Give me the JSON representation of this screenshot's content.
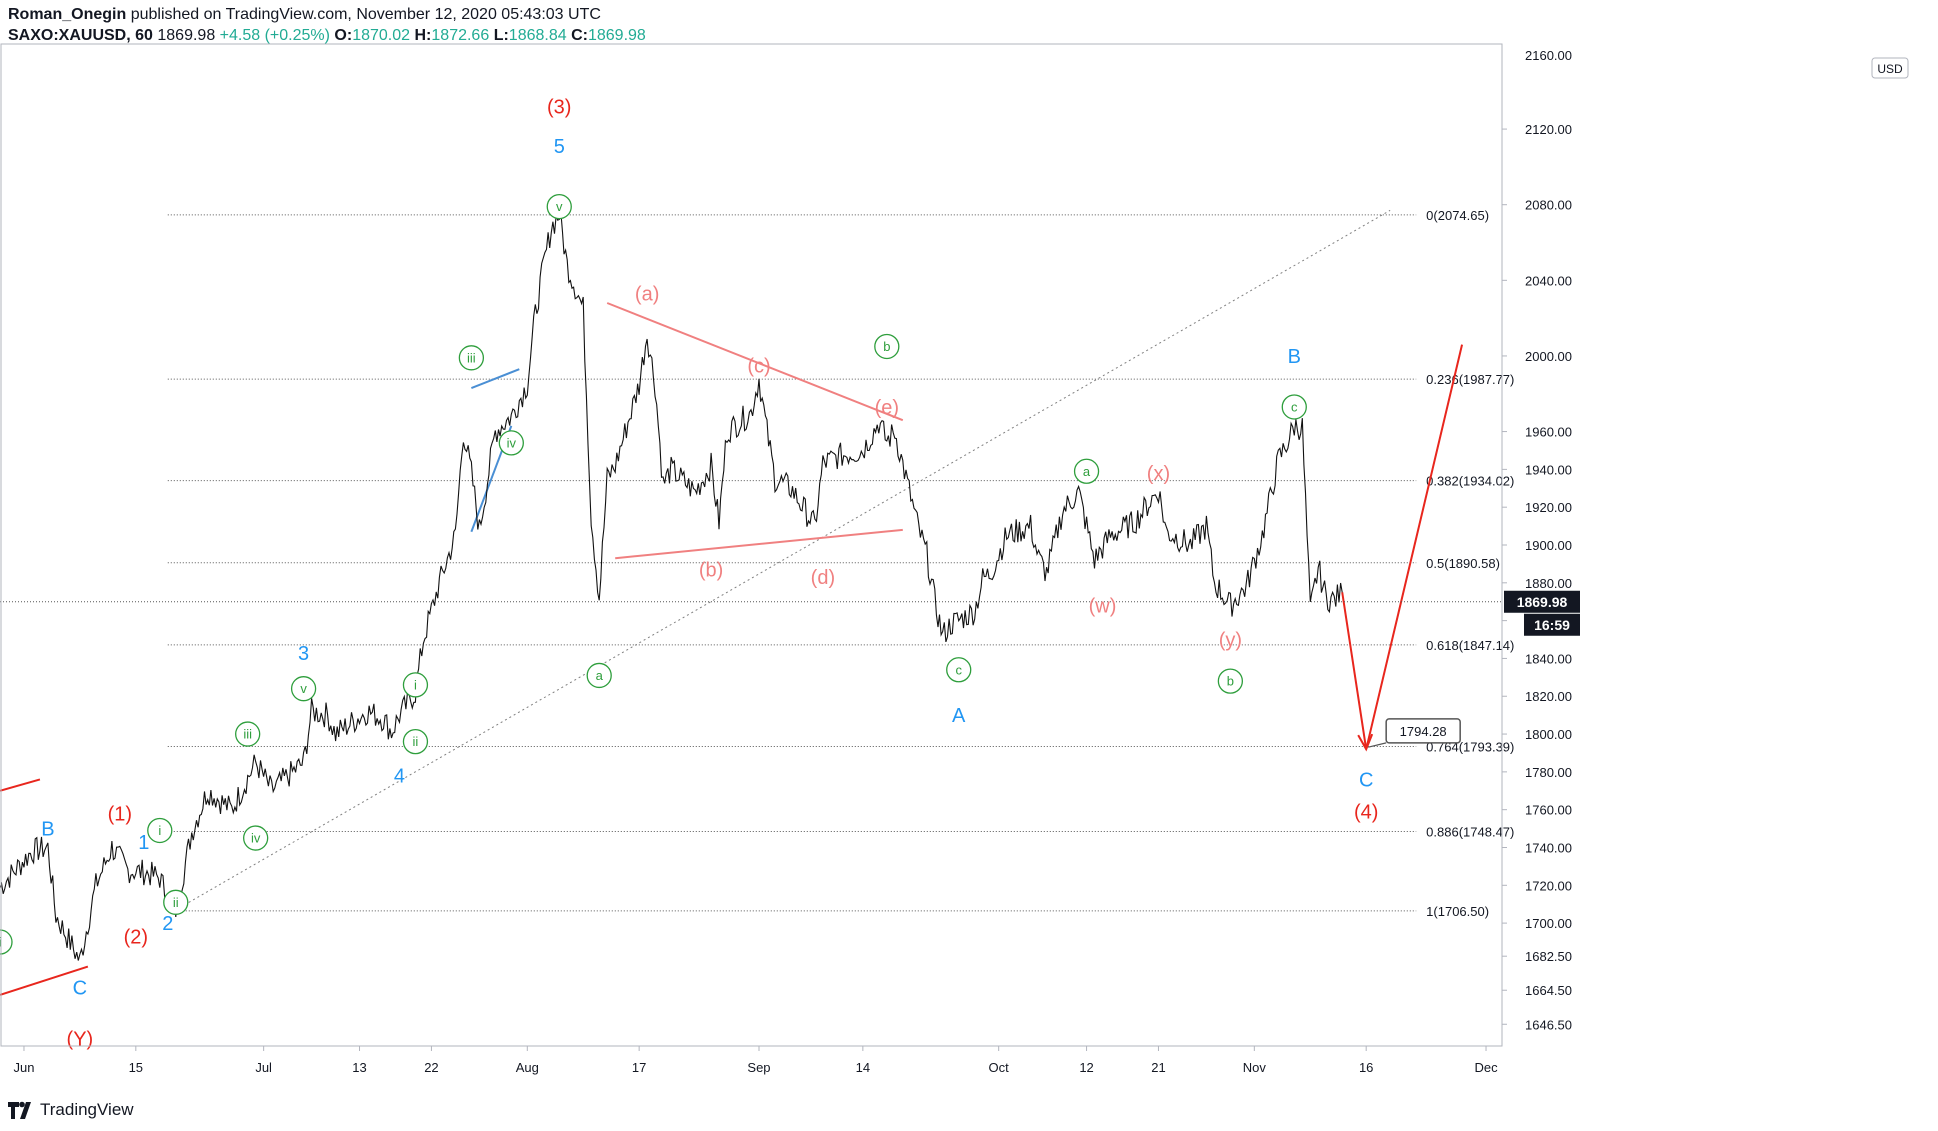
{
  "header": {
    "author": "Roman_Onegin",
    "published": "published on TradingView.com, November 12, 2020 05:43:03 UTC",
    "symbol": "SAXO:XAUUSD, 60",
    "last": "1869.98",
    "change": "+4.58 (+0.25%)",
    "o_label": "O:",
    "o": "1870.02",
    "h_label": "H:",
    "h": "1872.66",
    "l_label": "L:",
    "l": "1868.84",
    "c_label": "C:",
    "c": "1869.98"
  },
  "currency_badge": "USD",
  "footer": {
    "brand": "TradingView"
  },
  "colors": {
    "red": "#e8261d",
    "blue": "#2196f3",
    "green": "#2e9e3c",
    "salmon": "#f08080",
    "dark_blue_line": "#4a8fd4"
  },
  "chart_data": {
    "type": "line",
    "series_name": "",
    "y_axis": {
      "ticks": [
        2120.0,
        2080.0,
        2040.0,
        2000.0,
        1960.0,
        1940.0,
        1920.0,
        1900.0,
        1880.0,
        1860.0,
        1840.0,
        1820.0,
        1800.0,
        1780.0,
        1760.0,
        1740.0,
        1720.0,
        1700.0,
        1682.5,
        1664.5,
        1646.5
      ],
      "tick_labels": [
        "2120.00",
        "2080.00",
        "2040.00",
        "2000.00",
        "1960.00",
        "1940.00",
        "1920.00",
        "1900.00",
        "1880.00",
        "1860.00",
        "1840.00",
        "1820.00",
        "1800.00",
        "1780.00",
        "1760.00",
        "1740.00",
        "1720.00",
        "1700.00",
        "1682.50",
        "1664.50",
        "1646.50"
      ],
      "top_partial_label": "2160.00",
      "ylim": [
        1635,
        2165
      ]
    },
    "x_axis": {
      "ticks": [
        {
          "label": "Jun",
          "date": "2020-06-01"
        },
        {
          "label": "15",
          "date": "2020-06-15"
        },
        {
          "label": "Jul",
          "date": "2020-07-01"
        },
        {
          "label": "13",
          "date": "2020-07-13"
        },
        {
          "label": "22",
          "date": "2020-07-22"
        },
        {
          "label": "Aug",
          "date": "2020-08-03"
        },
        {
          "label": "17",
          "date": "2020-08-17"
        },
        {
          "label": "Sep",
          "date": "2020-09-01"
        },
        {
          "label": "14",
          "date": "2020-09-14"
        },
        {
          "label": "Oct",
          "date": "2020-10-01"
        },
        {
          "label": "12",
          "date": "2020-10-12"
        },
        {
          "label": "21",
          "date": "2020-10-21"
        },
        {
          "label": "Nov",
          "date": "2020-11-02"
        },
        {
          "label": "16",
          "date": "2020-11-16"
        },
        {
          "label": "Dec",
          "date": "2020-12-01"
        }
      ],
      "xlim": [
        "2020-05-29",
        "2020-12-03"
      ]
    },
    "price_path": [
      [
        "2020-05-29",
        1719
      ],
      [
        "2020-06-02",
        1738
      ],
      [
        "2020-06-04",
        1740
      ],
      [
        "2020-06-05",
        1704
      ],
      [
        "2020-06-08",
        1680
      ],
      [
        "2020-06-10",
        1720
      ],
      [
        "2020-06-12",
        1740
      ],
      [
        "2020-06-14",
        1728
      ],
      [
        "2020-06-16",
        1727
      ],
      [
        "2020-06-18",
        1724
      ],
      [
        "2020-06-19",
        1713
      ],
      [
        "2020-06-20",
        1707
      ],
      [
        "2020-06-22",
        1748
      ],
      [
        "2020-06-24",
        1770
      ],
      [
        "2020-06-27",
        1760
      ],
      [
        "2020-06-30",
        1785
      ],
      [
        "2020-07-02",
        1770
      ],
      [
        "2020-07-06",
        1785
      ],
      [
        "2020-07-07",
        1812
      ],
      [
        "2020-07-09",
        1810
      ],
      [
        "2020-07-10",
        1800
      ],
      [
        "2020-07-14",
        1812
      ],
      [
        "2020-07-16",
        1808
      ],
      [
        "2020-07-17",
        1801
      ],
      [
        "2020-07-18",
        1810
      ],
      [
        "2020-07-20",
        1822
      ],
      [
        "2020-07-21",
        1850
      ],
      [
        "2020-07-23",
        1880
      ],
      [
        "2020-07-25",
        1905
      ],
      [
        "2020-07-26",
        1960
      ],
      [
        "2020-07-27",
        1938
      ],
      [
        "2020-07-28",
        1908
      ],
      [
        "2020-07-30",
        1960
      ],
      [
        "2020-08-01",
        1968
      ],
      [
        "2020-08-03",
        1985
      ],
      [
        "2020-08-04",
        2022
      ],
      [
        "2020-08-05",
        2047
      ],
      [
        "2020-08-06",
        2068
      ],
      [
        "2020-08-07",
        2075
      ],
      [
        "2020-08-08",
        2048
      ],
      [
        "2020-08-10",
        2025
      ],
      [
        "2020-08-11",
        1915
      ],
      [
        "2020-08-12",
        1872
      ],
      [
        "2020-08-13",
        1935
      ],
      [
        "2020-08-14",
        1942
      ],
      [
        "2020-08-17",
        1985
      ],
      [
        "2020-08-18",
        2012
      ],
      [
        "2020-08-19",
        1985
      ],
      [
        "2020-08-20",
        1932
      ],
      [
        "2020-08-21",
        1940
      ],
      [
        "2020-08-24",
        1928
      ],
      [
        "2020-08-26",
        1942
      ],
      [
        "2020-08-27",
        1912
      ],
      [
        "2020-08-28",
        1960
      ],
      [
        "2020-08-31",
        1970
      ],
      [
        "2020-09-01",
        1988
      ],
      [
        "2020-09-02",
        1960
      ],
      [
        "2020-09-03",
        1935
      ],
      [
        "2020-09-05",
        1930
      ],
      [
        "2020-09-08",
        1910
      ],
      [
        "2020-09-09",
        1943
      ],
      [
        "2020-09-11",
        1947
      ],
      [
        "2020-09-14",
        1950
      ],
      [
        "2020-09-16",
        1965
      ],
      [
        "2020-09-17",
        1955
      ],
      [
        "2020-09-18",
        1960
      ],
      [
        "2020-09-21",
        1908
      ],
      [
        "2020-09-22",
        1895
      ],
      [
        "2020-09-23",
        1870
      ],
      [
        "2020-09-24",
        1852
      ],
      [
        "2020-09-25",
        1858
      ],
      [
        "2020-09-28",
        1865
      ],
      [
        "2020-09-29",
        1882
      ],
      [
        "2020-09-30",
        1885
      ],
      [
        "2020-10-02",
        1905
      ],
      [
        "2020-10-05",
        1910
      ],
      [
        "2020-10-06",
        1893
      ],
      [
        "2020-10-07",
        1885
      ],
      [
        "2020-10-09",
        1918
      ],
      [
        "2020-10-11",
        1928
      ],
      [
        "2020-10-13",
        1892
      ],
      [
        "2020-10-15",
        1905
      ],
      [
        "2020-10-18",
        1912
      ],
      [
        "2020-10-21",
        1929
      ],
      [
        "2020-10-22",
        1907
      ],
      [
        "2020-10-25",
        1900
      ],
      [
        "2020-10-27",
        1910
      ],
      [
        "2020-10-28",
        1880
      ],
      [
        "2020-10-30",
        1868
      ],
      [
        "2020-11-01",
        1878
      ],
      [
        "2020-11-03",
        1905
      ],
      [
        "2020-11-05",
        1945
      ],
      [
        "2020-11-06",
        1953
      ],
      [
        "2020-11-07",
        1963
      ],
      [
        "2020-11-08",
        1962
      ],
      [
        "2020-11-09",
        1865
      ],
      [
        "2020-11-10",
        1888
      ],
      [
        "2020-11-11",
        1872
      ],
      [
        "2020-11-12",
        1871
      ],
      [
        "2020-11-13",
        1875
      ]
    ],
    "current_price": {
      "value": 1869.98,
      "label": "1869.98",
      "countdown": "16:59"
    },
    "fib_levels": [
      {
        "ratio": "0",
        "price": 2074.65,
        "label": "0(2074.65)"
      },
      {
        "ratio": "0.236",
        "price": 1987.77,
        "label": "0.236(1987.77)"
      },
      {
        "ratio": "0.382",
        "price": 1934.02,
        "label": "0.382(1934.02)"
      },
      {
        "ratio": "0.5",
        "price": 1890.58,
        "label": "0.5(1890.58)"
      },
      {
        "ratio": "0.618",
        "price": 1847.14,
        "label": "0.618(1847.14)"
      },
      {
        "ratio": "0.764",
        "price": 1793.39,
        "label": "0.764(1793.39)"
      },
      {
        "ratio": "0.886",
        "price": 1748.47,
        "label": "0.886(1748.47)"
      },
      {
        "ratio": "1",
        "price": 1706.5,
        "label": "1(1706.50)"
      }
    ],
    "fib_start_date": "2020-06-19",
    "fib_end_date": "2020-11-16",
    "trendlines": [
      {
        "name": "long-dotted-trendline",
        "color": "#808080",
        "dash": true,
        "from": [
          "2020-06-20",
          1707
        ],
        "to": [
          "2020-11-19",
          2077
        ]
      },
      {
        "name": "triangle-upper",
        "color": "#f08080",
        "from": [
          "2020-08-13",
          2028
        ],
        "to": [
          "2020-09-19",
          1966
        ]
      },
      {
        "name": "triangle-lower",
        "color": "#f08080",
        "from": [
          "2020-08-14",
          1893
        ],
        "to": [
          "2020-09-19",
          1908
        ]
      },
      {
        "name": "wedge-upper",
        "color": "#4a8fd4",
        "from": [
          "2020-07-27",
          1983
        ],
        "to": [
          "2020-08-02",
          1993
        ]
      },
      {
        "name": "wedge-lower",
        "color": "#4a8fd4",
        "from": [
          "2020-07-27",
          1907
        ],
        "to": [
          "2020-08-01",
          1963
        ]
      },
      {
        "name": "channel-upper",
        "color": "#e8261d",
        "from": [
          "2020-05-29",
          1770
        ],
        "to": [
          "2020-06-03",
          1776
        ]
      },
      {
        "name": "channel-lower",
        "color": "#e8261d",
        "from": [
          "2020-05-29",
          1662
        ],
        "to": [
          "2020-06-09",
          1677
        ]
      },
      {
        "name": "projection-down",
        "color": "#e8261d",
        "from": [
          "2020-11-13",
          1875
        ],
        "to": [
          "2020-11-16",
          1792
        ]
      },
      {
        "name": "projection-up",
        "color": "#e8261d",
        "from": [
          "2020-11-16",
          1792
        ],
        "to": [
          "2020-11-28",
          2006
        ]
      }
    ],
    "target_label": {
      "text": "1794.28",
      "date": "2020-11-17",
      "price": 1794.28
    },
    "wave_labels": [
      {
        "text": "(3)",
        "color": "red",
        "date": "2020-08-07",
        "price": 2132
      },
      {
        "text": "5",
        "color": "blue",
        "date": "2020-08-07",
        "price": 2111
      },
      {
        "text": "v",
        "color": "green",
        "circled": true,
        "date": "2020-08-07",
        "price": 2079
      },
      {
        "text": "iii",
        "color": "green",
        "circled": true,
        "date": "2020-07-27",
        "price": 1999
      },
      {
        "text": "iv",
        "color": "green",
        "circled": true,
        "date": "2020-08-01",
        "price": 1954
      },
      {
        "text": "a",
        "color": "green",
        "circled": true,
        "date": "2020-08-12",
        "price": 1831
      },
      {
        "text": "(a)",
        "color": "salmon",
        "date": "2020-08-18",
        "price": 2033
      },
      {
        "text": "(b)",
        "color": "salmon",
        "date": "2020-08-26",
        "price": 1887
      },
      {
        "text": "(c)",
        "color": "salmon",
        "date": "2020-09-01",
        "price": 1995
      },
      {
        "text": "(d)",
        "color": "salmon",
        "date": "2020-09-09",
        "price": 1883
      },
      {
        "text": "(e)",
        "color": "salmon",
        "date": "2020-09-17",
        "price": 1973
      },
      {
        "text": "b",
        "color": "green",
        "circled": true,
        "date": "2020-09-17",
        "price": 2005
      },
      {
        "text": "c",
        "color": "green",
        "circled": true,
        "date": "2020-09-26",
        "price": 1834
      },
      {
        "text": "A",
        "color": "blue",
        "date": "2020-09-26",
        "price": 1810
      },
      {
        "text": "a",
        "color": "green",
        "circled": true,
        "date": "2020-10-12",
        "price": 1939
      },
      {
        "text": "(w)",
        "color": "salmon",
        "date": "2020-10-14",
        "price": 1868
      },
      {
        "text": "(x)",
        "color": "salmon",
        "date": "2020-10-21",
        "price": 1938
      },
      {
        "text": "(y)",
        "color": "salmon",
        "date": "2020-10-30",
        "price": 1850
      },
      {
        "text": "b",
        "color": "green",
        "circled": true,
        "date": "2020-10-30",
        "price": 1828
      },
      {
        "text": "B",
        "color": "blue",
        "date": "2020-11-07",
        "price": 2000
      },
      {
        "text": "c",
        "color": "green",
        "circled": true,
        "date": "2020-11-07",
        "price": 1973
      },
      {
        "text": "C",
        "color": "blue",
        "date": "2020-11-16",
        "price": 1776
      },
      {
        "text": "(4)",
        "color": "red",
        "date": "2020-11-16",
        "price": 1759
      },
      {
        "text": "3",
        "color": "blue",
        "date": "2020-07-06",
        "price": 1843
      },
      {
        "text": "v",
        "color": "green",
        "circled": true,
        "date": "2020-07-06",
        "price": 1824
      },
      {
        "text": "i",
        "color": "green",
        "circled": true,
        "date": "2020-07-20",
        "price": 1826
      },
      {
        "text": "ii",
        "color": "green",
        "circled": true,
        "date": "2020-07-20",
        "price": 1796
      },
      {
        "text": "4",
        "color": "blue",
        "date": "2020-07-18",
        "price": 1778
      },
      {
        "text": "iii",
        "color": "green",
        "circled": true,
        "date": "2020-06-29",
        "price": 1800
      },
      {
        "text": "iv",
        "color": "green",
        "circled": true,
        "date": "2020-06-30",
        "price": 1745
      },
      {
        "text": "(1)",
        "color": "red",
        "date": "2020-06-13",
        "price": 1758
      },
      {
        "text": "1",
        "color": "blue",
        "date": "2020-06-16",
        "price": 1743
      },
      {
        "text": "i",
        "color": "green",
        "circled": true,
        "date": "2020-06-18",
        "price": 1749
      },
      {
        "text": "ii",
        "color": "green",
        "circled": true,
        "date": "2020-06-20",
        "price": 1711
      },
      {
        "text": "2",
        "color": "blue",
        "date": "2020-06-19",
        "price": 1700
      },
      {
        "text": "(2)",
        "color": "red",
        "date": "2020-06-15",
        "price": 1693
      },
      {
        "text": "B",
        "color": "blue",
        "date": "2020-06-04",
        "price": 1750
      },
      {
        "text": "C",
        "color": "blue",
        "date": "2020-06-08",
        "price": 1666
      },
      {
        "text": "(Y)",
        "color": "red",
        "date": "2020-06-08",
        "price": 1639
      },
      {
        "text": "i",
        "color": "green",
        "circled": true,
        "date": "2020-05-29",
        "price": 1690
      }
    ]
  }
}
